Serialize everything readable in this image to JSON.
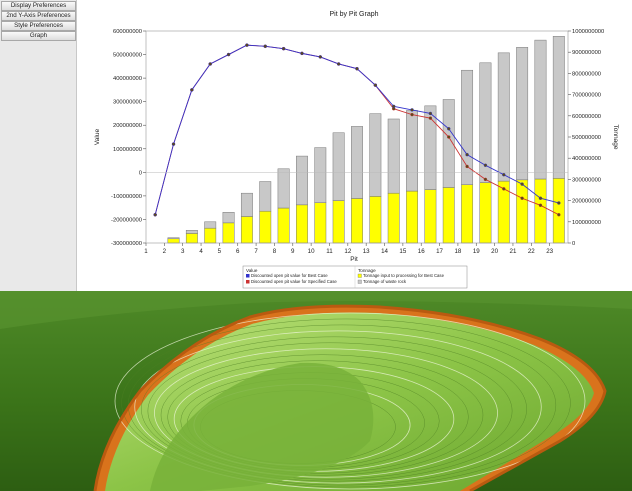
{
  "sidebar": {
    "buttons": [
      {
        "label": "Display Preferences"
      },
      {
        "label": "2nd Y-Axis Preferences"
      },
      {
        "label": "Style Preferences"
      },
      {
        "label": "Graph"
      }
    ]
  },
  "chart_data": {
    "type": "bar+line",
    "title": "Pit by Pit Graph",
    "xlabel": "Pit",
    "ylabel": "Value",
    "y2label": "Tonnage",
    "categories": [
      "1",
      "2",
      "3",
      "4",
      "5",
      "6",
      "7",
      "8",
      "9",
      "10",
      "11",
      "12",
      "13",
      "14",
      "15",
      "16",
      "17",
      "18",
      "19",
      "20",
      "21",
      "22",
      "23"
    ],
    "ylim": [
      -300000000,
      600000000
    ],
    "y_ticks": [
      -300000000,
      -200000000,
      -100000000,
      0,
      100000000,
      200000000,
      300000000,
      400000000,
      500000000,
      600000000
    ],
    "y_tick_labels": [
      "-300000000",
      "-200000000",
      "-100000000",
      "0",
      "100000000",
      "200000000",
      "300000000",
      "400000000",
      "500000000",
      "600000000"
    ],
    "y2lim": [
      0,
      1000000000
    ],
    "y2_ticks": [
      0,
      100000000,
      200000000,
      300000000,
      400000000,
      500000000,
      600000000,
      700000000,
      800000000,
      900000000,
      1000000000
    ],
    "y2_tick_labels": [
      "0",
      "100000000",
      "200000000",
      "300000000",
      "400000000",
      "500000000",
      "600000000",
      "700000000",
      "800000000",
      "900000000",
      "1000000000"
    ],
    "bar_series": [
      {
        "name": "Tonnage input to processing for Best Case",
        "color": "#ffff00",
        "values": [
          0,
          20000000,
          45000000,
          70000000,
          95000000,
          125000000,
          150000000,
          165000000,
          180000000,
          190000000,
          200000000,
          210000000,
          220000000,
          235000000,
          245000000,
          252000000,
          262000000,
          275000000,
          285000000,
          292000000,
          298000000,
          302000000,
          305000000
        ]
      },
      {
        "name": "Tonnage of waste rock",
        "color": "#c8c8c8",
        "values": [
          0,
          5000000,
          15000000,
          30000000,
          50000000,
          110000000,
          140000000,
          185000000,
          230000000,
          260000000,
          320000000,
          340000000,
          390000000,
          350000000,
          380000000,
          395000000,
          415000000,
          540000000,
          565000000,
          605000000,
          625000000,
          655000000,
          670000000
        ]
      }
    ],
    "line_series": [
      {
        "name": "Discounted open pit value for Best Case",
        "color": "#3333cc",
        "values": [
          -180000000,
          120000000,
          350000000,
          460000000,
          500000000,
          540000000,
          535000000,
          525000000,
          505000000,
          490000000,
          460000000,
          440000000,
          370000000,
          280000000,
          265000000,
          250000000,
          185000000,
          75000000,
          30000000,
          -10000000,
          -50000000,
          -110000000,
          -130000000
        ]
      },
      {
        "name": "Discounted open pit value for Specified Case",
        "color": "#cc3333",
        "values": [
          -180000000,
          120000000,
          350000000,
          460000000,
          500000000,
          540000000,
          535000000,
          525000000,
          505000000,
          490000000,
          460000000,
          440000000,
          370000000,
          270000000,
          245000000,
          230000000,
          150000000,
          25000000,
          -30000000,
          -70000000,
          -110000000,
          -140000000,
          -180000000
        ]
      }
    ],
    "legend": {
      "placement": "bottom",
      "value_heading": "Value",
      "tonnage_heading": "Tonnage",
      "value_items": [
        "Discounted open pit value for Best Case",
        "Discounted open pit value for Specified Case"
      ],
      "tonnage_items": [
        "Tonnage input to processing for Best Case",
        "Tonnage of waste rock"
      ]
    }
  },
  "colors": {
    "terrain": "#3f7a1e",
    "pit_bench": "#9ccf55",
    "pit_rim": "#e07a22"
  }
}
